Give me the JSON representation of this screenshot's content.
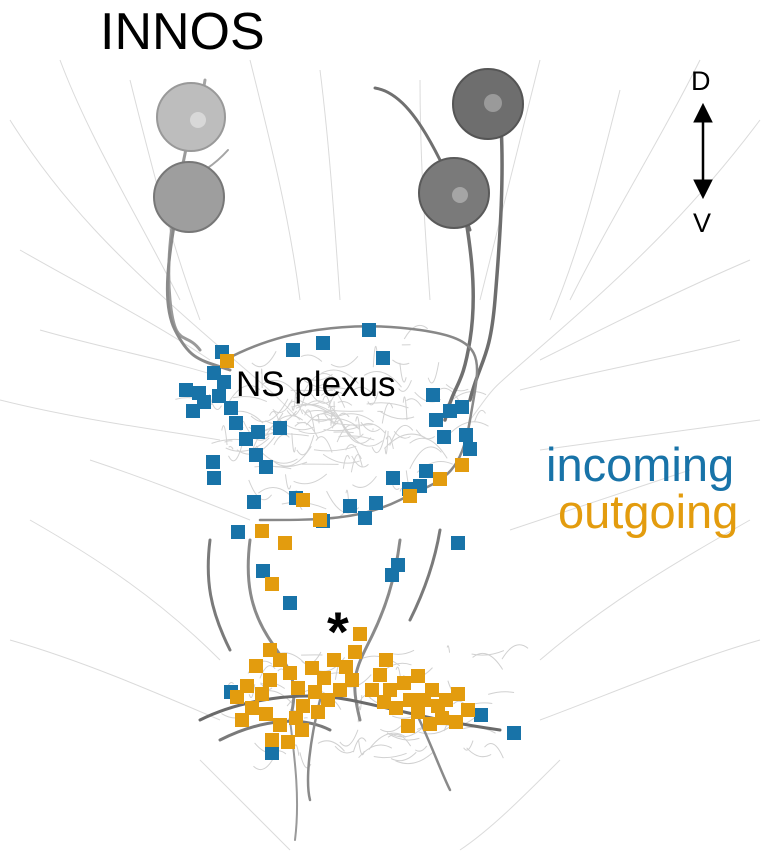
{
  "title": "INNOS",
  "axis": {
    "dorsal_label": "D",
    "ventral_label": "V"
  },
  "region_label": "NS plexus",
  "legend": {
    "incoming": {
      "label": "incoming",
      "color": "#1873a8"
    },
    "outgoing": {
      "label": "outgoing",
      "color": "#e39c0e"
    }
  },
  "annotation_marker": "*",
  "neuron_colors": {
    "light": "#b8b8b8",
    "dark": "#6e6e6e",
    "background_fibers": "#cfcfcf"
  }
}
